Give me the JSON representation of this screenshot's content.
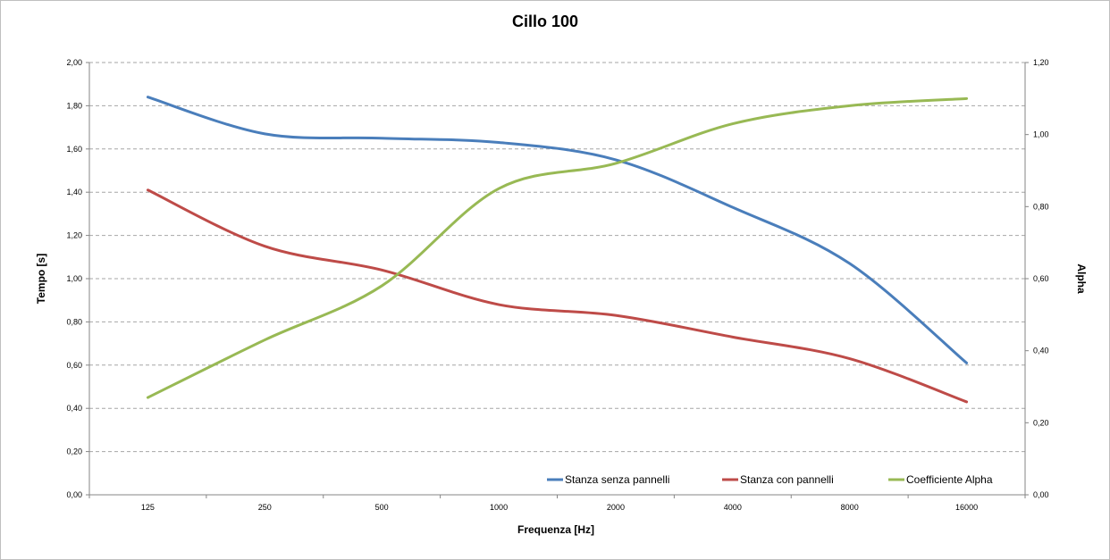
{
  "chart_data": {
    "type": "line",
    "title": "Cillo 100",
    "xlabel": "Frequenza [Hz]",
    "ylabel": "Tempo [s]",
    "y2label": "Alpha",
    "categories": [
      "125",
      "250",
      "500",
      "1000",
      "2000",
      "4000",
      "8000",
      "16000"
    ],
    "ylim": [
      0,
      2
    ],
    "y2lim": [
      0,
      1.2
    ],
    "yticks": [
      "0,00",
      "0,20",
      "0,40",
      "0,60",
      "0,80",
      "1,00",
      "1,20",
      "1,40",
      "1,60",
      "1,80",
      "2,00"
    ],
    "y2ticks": [
      "0,00",
      "0,20",
      "0,40",
      "0,60",
      "0,80",
      "1,00",
      "1,20"
    ],
    "grid": true,
    "legend_position": "bottom-right",
    "series": [
      {
        "name": "Stanza senza pannelli",
        "axis": "left",
        "color": "#4a7ebb",
        "values": [
          1.84,
          1.67,
          1.65,
          1.63,
          1.55,
          1.33,
          1.07,
          0.61
        ]
      },
      {
        "name": "Stanza con pannelli",
        "axis": "left",
        "color": "#be4b48",
        "values": [
          1.41,
          1.15,
          1.04,
          0.88,
          0.83,
          0.73,
          0.63,
          0.43
        ]
      },
      {
        "name": "Coefficiente Alpha",
        "axis": "right",
        "color": "#98b954",
        "values": [
          0.27,
          0.43,
          0.58,
          0.85,
          0.92,
          1.03,
          1.08,
          1.1
        ]
      }
    ]
  }
}
